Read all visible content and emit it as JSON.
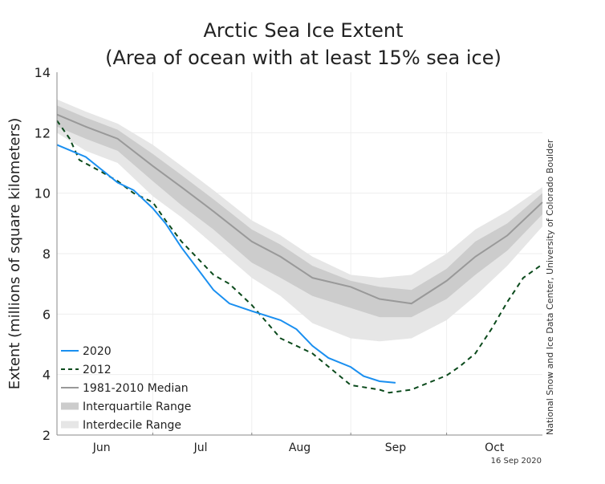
{
  "chart_data": {
    "type": "line",
    "title": "Arctic Sea Ice Extent",
    "subtitle": "(Area of ocean with at least 15% sea ice)",
    "ylabel": "Extent (millions of square kilometers)",
    "xlabel": "",
    "ylim": [
      2,
      14
    ],
    "yticks": [
      "2",
      "4",
      "6",
      "8",
      "10",
      "12",
      "14"
    ],
    "xlim": [
      "06-01",
      "10-31"
    ],
    "xticks": [
      {
        "label": "Jun",
        "center": "06-15"
      },
      {
        "label": "Jul",
        "center": "07-16"
      },
      {
        "label": "Aug",
        "center": "08-16"
      },
      {
        "label": "Sep",
        "center": "09-15"
      },
      {
        "label": "Oct",
        "center": "10-16"
      }
    ],
    "month_boundaries": [
      "07-01",
      "08-01",
      "09-01",
      "10-01"
    ],
    "grid": true,
    "legend_placement": "bottom-left",
    "date_note": "16 Sep 2020",
    "credit": "National Snow and Ice Data Center, University of Colorado Boulder",
    "colors": {
      "s2020": "#1a8ff0",
      "s2012": "#0b4a1c",
      "median": "#999999",
      "iqr": "#cccccc",
      "idr": "#e6e6e6",
      "grid": "#eeeeee"
    },
    "climatology": {
      "dates": [
        "06-01",
        "06-10",
        "06-20",
        "07-01",
        "07-10",
        "07-20",
        "08-01",
        "08-10",
        "08-20",
        "09-01",
        "09-10",
        "09-20",
        "10-01",
        "10-10",
        "10-20",
        "10-31"
      ],
      "median": [
        12.6,
        12.2,
        11.8,
        10.9,
        10.2,
        9.4,
        8.4,
        7.9,
        7.2,
        6.9,
        6.5,
        6.35,
        7.1,
        7.9,
        8.6,
        9.7
      ],
      "iqr_low": [
        12.2,
        11.8,
        11.4,
        10.4,
        9.6,
        8.8,
        7.7,
        7.2,
        6.6,
        6.2,
        5.9,
        5.9,
        6.5,
        7.3,
        8.1,
        9.3
      ],
      "iqr_high": [
        12.9,
        12.5,
        12.1,
        11.3,
        10.6,
        9.8,
        8.8,
        8.3,
        7.6,
        7.1,
        6.9,
        6.8,
        7.5,
        8.4,
        9.0,
        10.0
      ],
      "idr_low": [
        12.0,
        11.4,
        11.0,
        9.9,
        9.2,
        8.3,
        7.2,
        6.6,
        5.7,
        5.2,
        5.1,
        5.2,
        5.8,
        6.6,
        7.6,
        8.9
      ],
      "idr_high": [
        13.1,
        12.7,
        12.3,
        11.6,
        10.9,
        10.1,
        9.1,
        8.6,
        7.9,
        7.3,
        7.2,
        7.3,
        8.0,
        8.8,
        9.4,
        10.2
      ]
    },
    "series": [
      {
        "name": "2020",
        "dates": [
          "06-01",
          "06-10",
          "06-20",
          "06-25",
          "07-01",
          "07-05",
          "07-10",
          "07-15",
          "07-20",
          "07-25",
          "08-01",
          "08-10",
          "08-15",
          "08-20",
          "08-25",
          "09-01",
          "09-05",
          "09-10",
          "09-15"
        ],
        "values": [
          11.6,
          11.2,
          10.35,
          10.1,
          9.5,
          9.0,
          8.2,
          7.5,
          6.8,
          6.35,
          6.1,
          5.8,
          5.5,
          4.95,
          4.55,
          4.25,
          3.95,
          3.78,
          3.73
        ]
      },
      {
        "name": "2012",
        "dates": [
          "06-01",
          "06-05",
          "06-08",
          "06-15",
          "06-20",
          "06-25",
          "07-01",
          "07-05",
          "07-10",
          "07-20",
          "07-25",
          "08-01",
          "08-10",
          "08-20",
          "09-01",
          "09-10",
          "09-13",
          "09-20",
          "10-01",
          "10-05",
          "10-10",
          "10-15",
          "10-20",
          "10-25",
          "10-31"
        ],
        "values": [
          12.4,
          11.8,
          11.1,
          10.7,
          10.4,
          10.0,
          9.7,
          9.1,
          8.4,
          7.3,
          7.0,
          6.3,
          5.2,
          4.7,
          3.65,
          3.5,
          3.4,
          3.5,
          3.97,
          4.26,
          4.7,
          5.5,
          6.4,
          7.2,
          7.65
        ]
      }
    ],
    "legend": [
      "2020",
      "2012",
      "1981-2010 Median",
      "Interquartile Range",
      "Interdecile Range"
    ]
  }
}
